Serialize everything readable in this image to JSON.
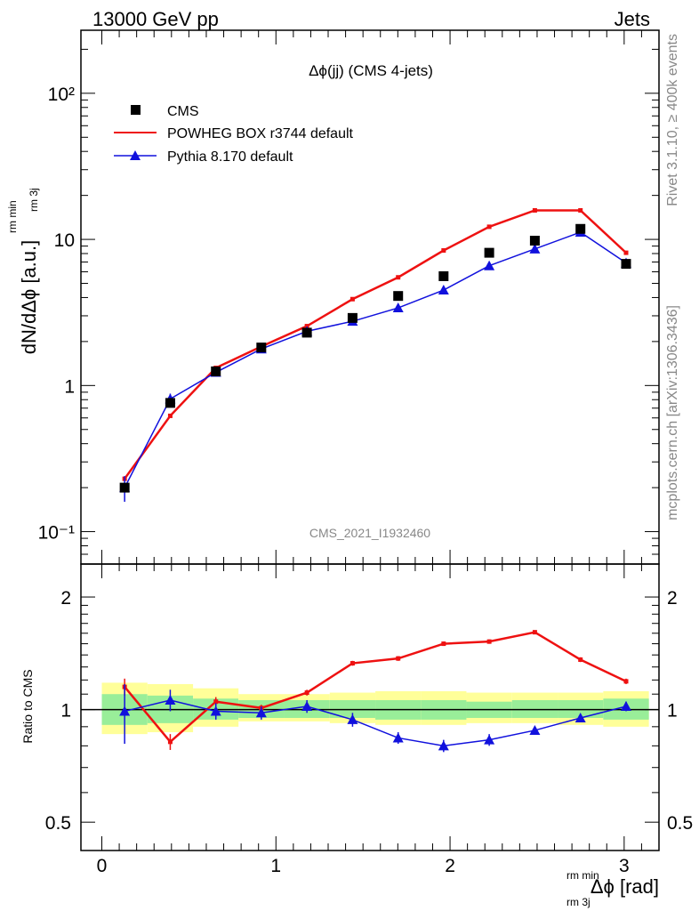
{
  "header": {
    "left": "13000 GeV pp",
    "right": "Jets"
  },
  "side_labels": {
    "rivet": "Rivet 3.1.10, ≥ 400k events",
    "mcplots": "mcplots.cern.ch [arXiv:1306.3436]"
  },
  "watermark": "CMS_2021_I1932460",
  "colors": {
    "cms": "#000000",
    "powheg": "#ee1111",
    "pythia": "#1111dd",
    "band_outer": "#ffff99",
    "band_inner": "#99ee99"
  },
  "chart_data": [
    {
      "type": "line",
      "title": "Δϕ(jj) (CMS 4-jets)",
      "ylabel": "dN/dΔϕ [a.u.]",
      "ylabel_sup": "rm min",
      "ylabel_sub": "rm 3j",
      "yscale": "log",
      "ylim": [
        0.06,
        270
      ],
      "xlim": [
        -0.12,
        3.2
      ],
      "ytick_labels": [
        "10⁻¹",
        "1",
        "10",
        "10²"
      ],
      "legend": {
        "placement": "top-left",
        "entries": [
          "CMS",
          "POWHEG BOX r3744 default",
          "Pythia 8.170 default"
        ]
      },
      "x": [
        0.131,
        0.393,
        0.655,
        0.916,
        1.178,
        1.44,
        1.702,
        1.963,
        2.225,
        2.487,
        2.749,
        3.011
      ],
      "series": [
        {
          "name": "CMS",
          "marker": "square",
          "values": [
            0.2,
            0.76,
            1.25,
            1.82,
            2.3,
            2.9,
            4.1,
            5.6,
            8.1,
            9.8,
            11.8,
            6.8
          ]
        },
        {
          "name": "POWHEG BOX r3744 default",
          "marker": "line",
          "values": [
            0.23,
            0.62,
            1.32,
            1.85,
            2.55,
            3.9,
            5.5,
            8.4,
            12.2,
            15.8,
            15.8,
            8.1
          ]
        },
        {
          "name": "Pythia 8.170 default",
          "marker": "triangle",
          "values": [
            0.2,
            0.81,
            1.23,
            1.78,
            2.35,
            2.75,
            3.4,
            4.5,
            6.6,
            8.6,
            11.2,
            6.9
          ],
          "err_low": [
            0.04,
            0.07,
            0.05,
            0.06,
            0.08,
            0.09,
            0.1,
            0.13,
            0.18,
            0.22,
            0.28,
            0.18
          ],
          "err_high": [
            0.04,
            0.07,
            0.05,
            0.06,
            0.08,
            0.09,
            0.1,
            0.13,
            0.18,
            0.22,
            0.28,
            0.18
          ]
        }
      ]
    },
    {
      "type": "line",
      "ylabel": "Ratio to CMS",
      "xlabel": "Δϕ [rad]",
      "xlabel_sup": "rm min",
      "xlabel_sub": "rm 3j",
      "yscale": "log",
      "ylim": [
        0.42,
        2.45
      ],
      "xlim": [
        -0.12,
        3.2
      ],
      "xtick_labels": [
        "0",
        "1",
        "2",
        "3"
      ],
      "ytick_labels": [
        "0.5",
        "1",
        "2"
      ],
      "x": [
        0.131,
        0.393,
        0.655,
        0.916,
        1.178,
        1.44,
        1.702,
        1.963,
        2.225,
        2.487,
        2.749,
        3.011
      ],
      "bin_edges": [
        0.0,
        0.262,
        0.524,
        0.785,
        1.047,
        1.309,
        1.571,
        1.833,
        2.094,
        2.356,
        2.618,
        2.88,
        3.142
      ],
      "band_outer": {
        "low": [
          0.86,
          0.87,
          0.9,
          0.93,
          0.93,
          0.92,
          0.91,
          0.91,
          0.92,
          0.92,
          0.91,
          0.9
        ],
        "high": [
          1.18,
          1.17,
          1.14,
          1.1,
          1.1,
          1.11,
          1.12,
          1.12,
          1.11,
          1.11,
          1.11,
          1.12
        ]
      },
      "band_inner": {
        "low": [
          0.91,
          0.92,
          0.94,
          0.95,
          0.95,
          0.95,
          0.94,
          0.94,
          0.95,
          0.95,
          0.95,
          0.94
        ],
        "high": [
          1.1,
          1.09,
          1.07,
          1.06,
          1.06,
          1.06,
          1.06,
          1.06,
          1.05,
          1.06,
          1.06,
          1.07
        ]
      },
      "series": [
        {
          "name": "POWHEG BOX r3744 default",
          "values": [
            1.15,
            0.82,
            1.05,
            1.01,
            1.11,
            1.33,
            1.37,
            1.5,
            1.52,
            1.61,
            1.36,
            1.19
          ],
          "err_low": [
            0.06,
            0.04,
            0.03,
            0.02,
            0.02,
            0.02,
            0.02,
            0.02,
            0.02,
            0.02,
            0.02,
            0.02
          ],
          "err_high": [
            0.06,
            0.04,
            0.03,
            0.02,
            0.02,
            0.02,
            0.02,
            0.02,
            0.02,
            0.02,
            0.02,
            0.02
          ]
        },
        {
          "name": "Pythia 8.170 default",
          "values": [
            0.99,
            1.06,
            0.99,
            0.98,
            1.02,
            0.94,
            0.84,
            0.8,
            0.83,
            0.88,
            0.95,
            1.02
          ],
          "err_low": [
            0.18,
            0.07,
            0.05,
            0.04,
            0.04,
            0.04,
            0.03,
            0.03,
            0.03,
            0.02,
            0.02,
            0.03
          ],
          "err_high": [
            0.18,
            0.07,
            0.05,
            0.04,
            0.04,
            0.04,
            0.03,
            0.03,
            0.03,
            0.02,
            0.02,
            0.03
          ]
        }
      ]
    }
  ]
}
